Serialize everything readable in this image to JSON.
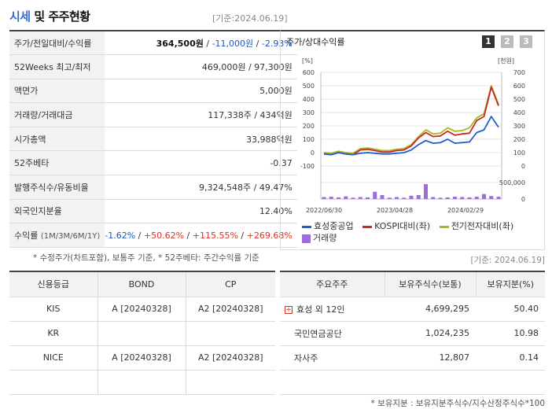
{
  "header": {
    "title_main": "시세",
    "title_conj": " 및 ",
    "title_sub": "주주현황",
    "base_date": "[기준:2024.06.19]"
  },
  "info": {
    "price": {
      "label": "주가/전일대비/수익률",
      "price": "364,500원",
      "sep1": " / ",
      "change": "-11,000원",
      "sep2": " / ",
      "rate": "-2.93%"
    },
    "week52": {
      "label": "52Weeks 최고/최저",
      "value": "469,000원 / 97,300원"
    },
    "par": {
      "label": "액면가",
      "value": "5,000원"
    },
    "volume": {
      "label": "거래량/거래대금",
      "value": "117,338주 / 434억원"
    },
    "mktcap": {
      "label": "시가총액",
      "value": "33,988억원"
    },
    "beta": {
      "label": "52주베타",
      "value": "-0.37"
    },
    "shares": {
      "label": "발행주식수/유동비율",
      "value": "9,324,548주 / 49.47%"
    },
    "foreign": {
      "label": "외국인지분율",
      "value": "12.40%"
    },
    "returns": {
      "label": "수익률",
      "label_sub": "(1M/3M/6M/1Y)",
      "r1": "-1.62%",
      "r2": "+50.62%",
      "r3": "+115.55%",
      "r4": "+269.68%",
      "sep": "/ "
    }
  },
  "note1": "* 수정주가(차트포함), 보통주 기준, * 52주베타: 주간수익률 기준",
  "chart": {
    "title": "주가/상대수익률",
    "buttons": [
      "1",
      "2",
      "3"
    ],
    "left_unit": "[%]",
    "right_unit": "[천원]",
    "legend": {
      "s1": "효성중공업",
      "s2": "KOSPI대비(좌)",
      "s3": "전기전자대비(좌)",
      "s4": "거래량"
    },
    "colors": {
      "s1": "#1f5fcf",
      "s2": "#c62828",
      "s3": "#a8b820",
      "vol": "#9a6fd6"
    }
  },
  "chart_data": {
    "type": "line",
    "left_ticks": [
      "600",
      "500",
      "400",
      "300",
      "200",
      "100",
      "0",
      "-100"
    ],
    "right_ticks": [
      "700",
      "600",
      "500",
      "400",
      "300",
      "200",
      "100",
      "0"
    ],
    "vol_ticks": [
      "500,000",
      "0"
    ],
    "x_labels": [
      "2022/06/30",
      "2023/04/28",
      "2024/02/29"
    ],
    "ylim_left": [
      -100,
      600
    ],
    "ylim_right": [
      0,
      700
    ],
    "ylim_vol": [
      0,
      500000
    ],
    "series": [
      {
        "name": "효성중공업",
        "axis": "right",
        "values": [
          90,
          85,
          100,
          90,
          85,
          95,
          100,
          95,
          90,
          90,
          95,
          100,
          120,
          160,
          190,
          170,
          175,
          200,
          170,
          175,
          180,
          250,
          270,
          370,
          290
        ]
      },
      {
        "name": "KOSPI대비(좌)",
        "axis": "left",
        "values": [
          -10,
          -15,
          0,
          -10,
          -15,
          20,
          25,
          15,
          5,
          5,
          15,
          20,
          50,
          110,
          150,
          120,
          125,
          160,
          130,
          140,
          145,
          240,
          270,
          490,
          350
        ]
      },
      {
        "name": "전기전자대비(좌)",
        "axis": "left",
        "values": [
          0,
          -5,
          10,
          0,
          -5,
          30,
          35,
          25,
          15,
          15,
          25,
          30,
          60,
          120,
          170,
          140,
          145,
          185,
          160,
          165,
          185,
          260,
          290,
          500,
          360
        ]
      }
    ],
    "volume": [
      60000,
      70000,
      50000,
      80000,
      40000,
      60000,
      50000,
      220000,
      120000,
      40000,
      60000,
      40000,
      100000,
      120000,
      450000,
      60000,
      40000,
      50000,
      70000,
      60000,
      50000,
      70000,
      150000,
      90000,
      70000
    ]
  },
  "date2": "[기준: 2024.06.19]",
  "credit": {
    "headers": [
      "신용등급",
      "BOND",
      "CP"
    ],
    "rows": [
      [
        "KIS",
        "A [20240328]",
        "A2 [20240328]"
      ],
      [
        "KR",
        "",
        ""
      ],
      [
        "NICE",
        "A [20240328]",
        "A2 [20240328]"
      ],
      [
        "",
        "",
        ""
      ]
    ]
  },
  "holders": {
    "headers": [
      "주요주주",
      "보유주식수(보통)",
      "보유지분(%)"
    ],
    "rows": [
      {
        "name": "효성 외 12인",
        "shares": "4,699,295",
        "pct": "50.40"
      },
      {
        "name": "국민연금공단",
        "shares": "1,024,235",
        "pct": "10.98"
      },
      {
        "name": "자사주",
        "shares": "12,807",
        "pct": "0.14"
      },
      {
        "name": "",
        "shares": "",
        "pct": ""
      }
    ],
    "plus_icon": "+"
  },
  "note2": "* 보유지분 : 보유지분주식수/지수산정주식수*100"
}
